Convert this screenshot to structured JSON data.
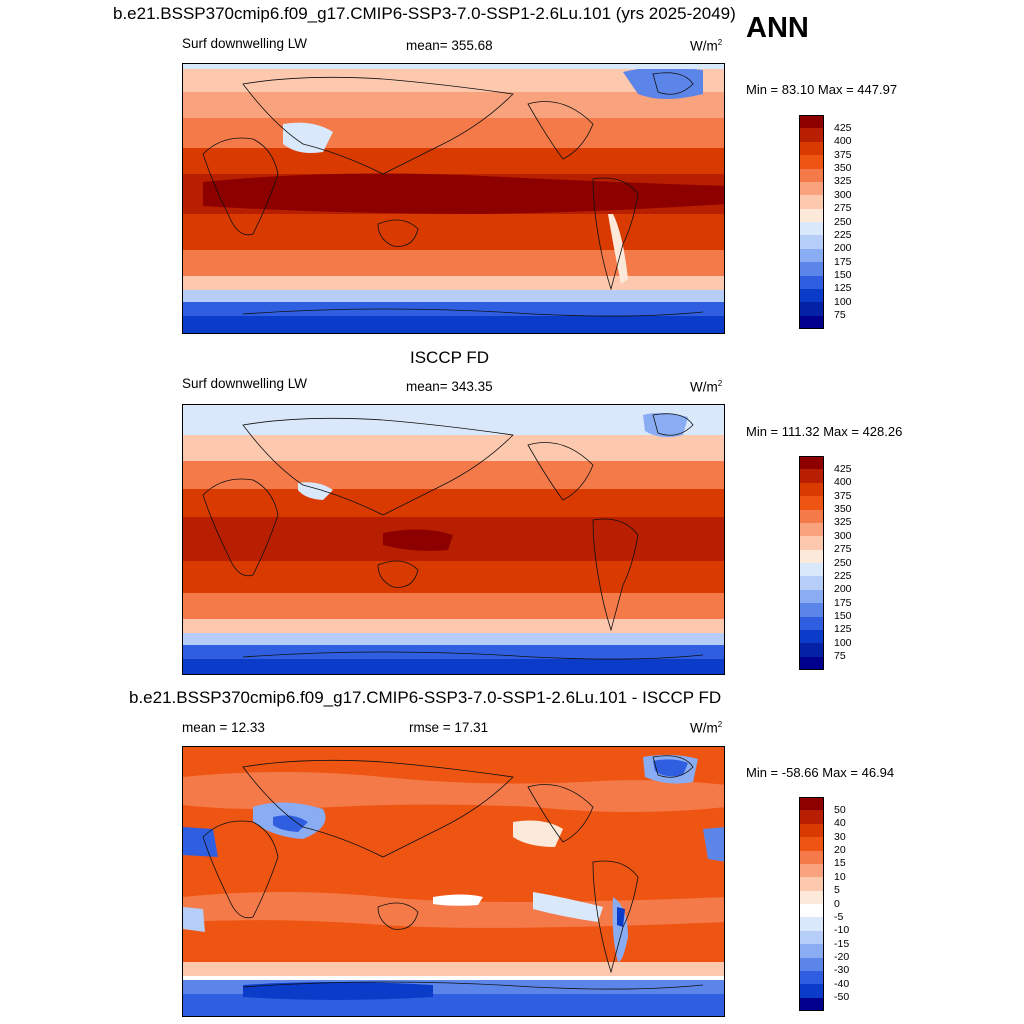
{
  "season": "ANN",
  "panels": [
    {
      "title": "b.e21.BSSP370cmip6.f09_g17.CMIP6-SSP3-7.0-SSP1-2.6Lu.101 (yrs 2025-2049)",
      "variable": "Surf downwelling LW",
      "stat": "mean= 355.68",
      "units": "W/m",
      "units_exp": "2",
      "minmax": "Min =  83.10 Max = 447.97",
      "scale": "abs",
      "colorbar_labels": [
        "425",
        "400",
        "375",
        "350",
        "325",
        "300",
        "275",
        "250",
        "225",
        "200",
        "175",
        "150",
        "125",
        "100",
        "75"
      ]
    },
    {
      "title": "ISCCP FD",
      "variable": "Surf downwelling LW",
      "stat": "mean= 343.35",
      "units": "W/m",
      "units_exp": "2",
      "minmax": "Min = 111.32 Max = 428.26",
      "scale": "abs",
      "colorbar_labels": [
        "425",
        "400",
        "375",
        "350",
        "325",
        "300",
        "275",
        "250",
        "225",
        "200",
        "175",
        "150",
        "125",
        "100",
        "75"
      ]
    },
    {
      "title": "b.e21.BSSP370cmip6.f09_g17.CMIP6-SSP3-7.0-SSP1-2.6Lu.101 - ISCCP FD",
      "variable": "mean =  12.33",
      "stat": "rmse =  17.31",
      "units": "W/m",
      "units_exp": "2",
      "minmax": "Min = -58.66 Max =  46.94",
      "scale": "diff",
      "colorbar_labels": [
        "50",
        "40",
        "30",
        "20",
        "15",
        "10",
        "5",
        "0",
        "-5",
        "-10",
        "-15",
        "-20",
        "-30",
        "-40",
        "-50"
      ]
    }
  ],
  "colors": {
    "abs": [
      "#8c0000",
      "#b81e00",
      "#d93a00",
      "#ee5512",
      "#f57a4a",
      "#f9a27e",
      "#fcc9ae",
      "#fde9d9",
      "#d9e8fb",
      "#b5cdf7",
      "#8aacf2",
      "#5c85ea",
      "#2f5ee0",
      "#0b3bc9",
      "#0522a6",
      "#00008c"
    ],
    "diff": [
      "#8c0000",
      "#b81e00",
      "#d93a00",
      "#ee5512",
      "#f57a4a",
      "#f9a27e",
      "#fcc9ae",
      "#fde9d9",
      "#ffffff",
      "#d9e8fb",
      "#b5cdf7",
      "#8aacf2",
      "#5c85ea",
      "#2f5ee0",
      "#0b3bc9",
      "#00008c"
    ]
  }
}
